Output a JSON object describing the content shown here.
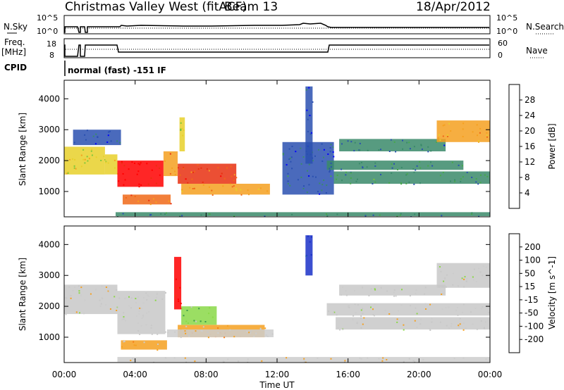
{
  "header": {
    "station": "Christmas Valley West (fitACF)",
    "beam": "Beam 13",
    "date": "18/Apr/2012"
  },
  "top_panels": {
    "nsky_label": "N.Sky",
    "nsky_ticks": [
      "10^5",
      "10^0"
    ],
    "nsearch_label": "N.Search",
    "nsearch_ticks": [
      "10^5",
      "10^0"
    ],
    "freq_label": "Freq.",
    "freq_unit": "[MHz]",
    "freq_ticks": [
      "18",
      "8"
    ],
    "nave_label": "Nave",
    "nave_ticks": [
      "60",
      "0"
    ],
    "cpid_label": "CPID",
    "cpid_value": "normal (fast) -151 IF"
  },
  "colors": {
    "power": [
      "#0000ff",
      "#2a50b0",
      "#3a8a6a",
      "#46a84a",
      "#7ec83a",
      "#e8d02a",
      "#f5a020",
      "#f06818",
      "#e83010",
      "#ff0000"
    ],
    "velocity": [
      "#ff0000",
      "#f04010",
      "#f57a18",
      "#f5a020",
      "#cccccc",
      "#c8c8c8",
      "#8ad848",
      "#3a9a4a",
      "#2a6aa8",
      "#1a30c8"
    ]
  },
  "chart_data": [
    {
      "type": "heatmap",
      "name": "power",
      "x_unit": "hours UT",
      "xlim": [
        0,
        24
      ],
      "ylabel": "Slant Range [km]",
      "ylim": [
        180,
        4600
      ],
      "yticks": [
        1000,
        2000,
        3000,
        4000
      ],
      "colorbar": {
        "label": "Power [dB]",
        "ticks": [
          4,
          8,
          12,
          16,
          20,
          24,
          28
        ],
        "range": [
          0,
          32
        ]
      },
      "regions": [
        {
          "x0": 0.0,
          "x1": 2.3,
          "y0": 1550,
          "y1": 2450,
          "value": 18
        },
        {
          "x0": 2.3,
          "x1": 3.0,
          "y0": 1550,
          "y1": 2200,
          "value": 16
        },
        {
          "x0": 3.0,
          "x1": 5.6,
          "y0": 1150,
          "y1": 2000,
          "value": 30
        },
        {
          "x0": 5.6,
          "x1": 6.4,
          "y0": 1500,
          "y1": 2300,
          "value": 22
        },
        {
          "x0": 6.4,
          "x1": 9.7,
          "y0": 1250,
          "y1": 1900,
          "value": 26
        },
        {
          "x0": 6.6,
          "x1": 11.6,
          "y0": 900,
          "y1": 1250,
          "value": 22
        },
        {
          "x0": 3.3,
          "x1": 6.0,
          "y0": 580,
          "y1": 900,
          "value": 24
        },
        {
          "x0": 6.5,
          "x1": 6.8,
          "y0": 2300,
          "y1": 3400,
          "value": 16
        },
        {
          "x0": 0.5,
          "x1": 3.2,
          "y0": 2500,
          "y1": 3000,
          "value": 6
        },
        {
          "x0": 2.9,
          "x1": 24.0,
          "y0": 200,
          "y1": 330,
          "value": 8
        },
        {
          "x0": 12.3,
          "x1": 15.2,
          "y0": 900,
          "y1": 2600,
          "value": 6
        },
        {
          "x0": 14.8,
          "x1": 22.5,
          "y0": 1700,
          "y1": 2000,
          "value": 8
        },
        {
          "x0": 15.2,
          "x1": 24.0,
          "y0": 1250,
          "y1": 1650,
          "value": 9
        },
        {
          "x0": 15.5,
          "x1": 21.5,
          "y0": 2300,
          "y1": 2700,
          "value": 7
        },
        {
          "x0": 21.0,
          "x1": 24.0,
          "y0": 2600,
          "y1": 3300,
          "value": 20
        },
        {
          "x0": 13.6,
          "x1": 14.0,
          "y0": 1900,
          "y1": 4400,
          "value": 5
        }
      ]
    },
    {
      "type": "heatmap",
      "name": "velocity",
      "x_unit": "hours UT",
      "xlim": [
        0,
        24
      ],
      "xlabel": "Time UT",
      "xticks": [
        "00:00",
        "04:00",
        "08:00",
        "12:00",
        "16:00",
        "20:00",
        "00:00"
      ],
      "ylabel": "Slant Range [km]",
      "ylim": [
        180,
        4600
      ],
      "yticks": [
        1000,
        2000,
        3000,
        4000
      ],
      "colorbar": {
        "label": "Velocity [m s^-1]",
        "ticks": [
          -200,
          -100,
          -50,
          -15,
          15,
          50,
          100,
          200
        ],
        "range": [
          -250,
          250
        ]
      },
      "regions": [
        {
          "x0": 0.0,
          "x1": 3.0,
          "y0": 1750,
          "y1": 2700,
          "value": 0
        },
        {
          "x0": 3.0,
          "x1": 5.7,
          "y0": 1100,
          "y1": 2500,
          "value": 0
        },
        {
          "x0": 3.2,
          "x1": 5.8,
          "y0": 600,
          "y1": 900,
          "value": -60
        },
        {
          "x0": 6.2,
          "x1": 6.6,
          "y0": 1900,
          "y1": 3600,
          "value": -220
        },
        {
          "x0": 6.6,
          "x1": 8.6,
          "y0": 1400,
          "y1": 2000,
          "value": 80
        },
        {
          "x0": 6.4,
          "x1": 11.3,
          "y0": 1000,
          "y1": 1400,
          "value": -60
        },
        {
          "x0": 5.8,
          "x1": 11.8,
          "y0": 1000,
          "y1": 1250,
          "value": -40
        },
        {
          "x0": 3.0,
          "x1": 24.0,
          "y0": 200,
          "y1": 360,
          "value": -40
        },
        {
          "x0": 13.6,
          "x1": 14.0,
          "y0": 3000,
          "y1": 4300,
          "value": 220
        },
        {
          "x0": 14.8,
          "x1": 24.0,
          "y0": 1700,
          "y1": 2100,
          "value": 0
        },
        {
          "x0": 15.3,
          "x1": 24.0,
          "y0": 1250,
          "y1": 1650,
          "value": 0
        },
        {
          "x0": 15.5,
          "x1": 21.5,
          "y0": 2350,
          "y1": 2700,
          "value": 0
        },
        {
          "x0": 21.0,
          "x1": 24.0,
          "y0": 2600,
          "y1": 3400,
          "value": 0
        }
      ]
    }
  ]
}
